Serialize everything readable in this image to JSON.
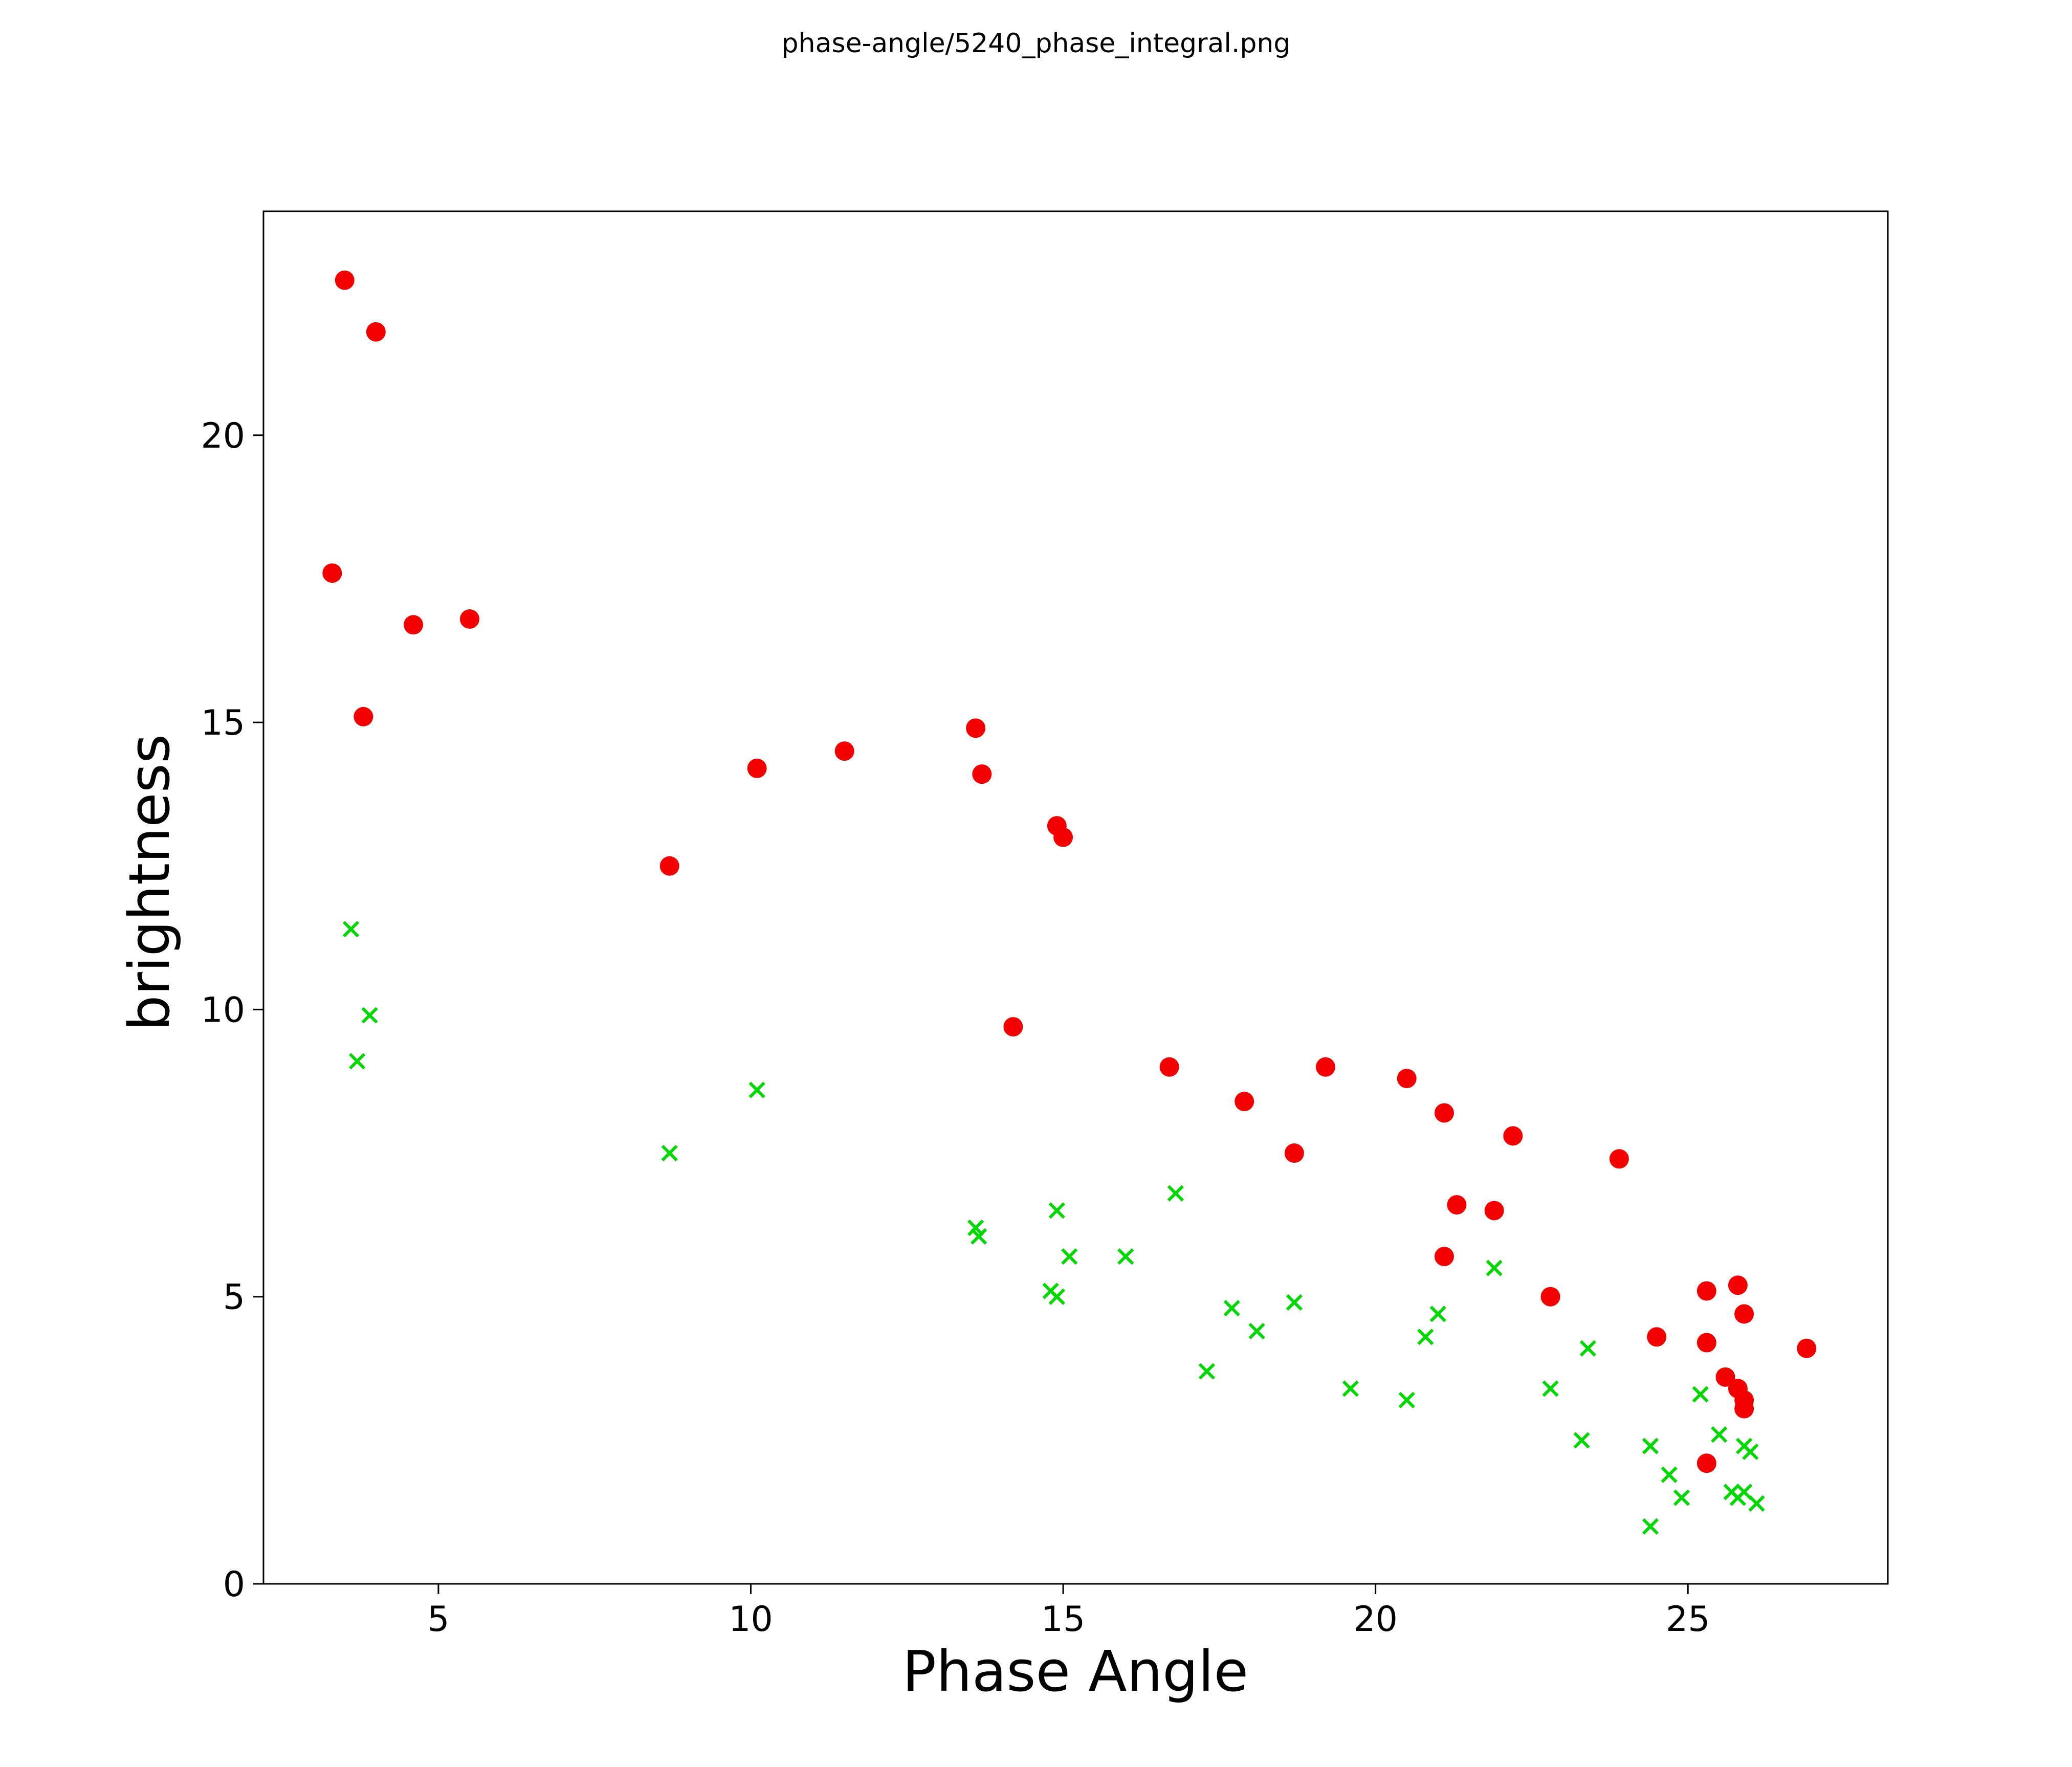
{
  "figure": {
    "background": "#ffffff"
  },
  "chart_data": {
    "type": "scatter",
    "title": "phase-angle/5240_phase_integral.png",
    "xlabel": "Phase Angle",
    "ylabel": "brightness",
    "xlim": [
      2.2,
      28.2
    ],
    "ylim": [
      0,
      23.9
    ],
    "xticks": [
      5,
      10,
      15,
      20,
      25
    ],
    "yticks": [
      0,
      5,
      10,
      15,
      20
    ],
    "grid": false,
    "legend": "none",
    "marker_colors": {
      "circles": "#f40000",
      "crosses": "#00d800"
    },
    "series": [
      {
        "name": "red-circles",
        "marker": "circle",
        "color": "#f40000",
        "points": [
          [
            3.5,
            22.7
          ],
          [
            4.0,
            21.8
          ],
          [
            3.3,
            17.6
          ],
          [
            3.8,
            15.1
          ],
          [
            4.6,
            16.7
          ],
          [
            5.5,
            16.8
          ],
          [
            8.7,
            12.5
          ],
          [
            10.1,
            14.2
          ],
          [
            11.5,
            14.5
          ],
          [
            13.6,
            14.9
          ],
          [
            13.7,
            14.1
          ],
          [
            14.9,
            13.2
          ],
          [
            15.0,
            13.0
          ],
          [
            14.2,
            9.7
          ],
          [
            16.7,
            9.0
          ],
          [
            17.9,
            8.4
          ],
          [
            18.7,
            7.5
          ],
          [
            19.2,
            9.0
          ],
          [
            20.5,
            8.8
          ],
          [
            21.1,
            8.2
          ],
          [
            21.1,
            5.7
          ],
          [
            21.3,
            6.6
          ],
          [
            21.9,
            6.5
          ],
          [
            22.2,
            7.8
          ],
          [
            22.8,
            5.0
          ],
          [
            23.9,
            7.4
          ],
          [
            24.5,
            4.3
          ],
          [
            25.3,
            5.1
          ],
          [
            25.8,
            5.2
          ],
          [
            25.9,
            4.7
          ],
          [
            25.3,
            4.2
          ],
          [
            25.6,
            3.6
          ],
          [
            25.8,
            3.4
          ],
          [
            25.9,
            3.2
          ],
          [
            25.9,
            3.05
          ],
          [
            25.3,
            2.1
          ],
          [
            26.9,
            4.1
          ]
        ]
      },
      {
        "name": "green-crosses",
        "marker": "x",
        "color": "#00d800",
        "points": [
          [
            3.6,
            11.4
          ],
          [
            3.9,
            9.9
          ],
          [
            3.7,
            9.1
          ],
          [
            8.7,
            7.5
          ],
          [
            10.1,
            8.6
          ],
          [
            13.6,
            6.2
          ],
          [
            13.65,
            6.05
          ],
          [
            14.9,
            6.5
          ],
          [
            15.1,
            5.7
          ],
          [
            16.0,
            5.7
          ],
          [
            14.8,
            5.1
          ],
          [
            14.9,
            5.0
          ],
          [
            16.8,
            6.8
          ],
          [
            17.3,
            3.7
          ],
          [
            17.7,
            4.8
          ],
          [
            18.1,
            4.4
          ],
          [
            18.7,
            4.9
          ],
          [
            19.6,
            3.4
          ],
          [
            20.5,
            3.2
          ],
          [
            20.8,
            4.3
          ],
          [
            21.0,
            4.7
          ],
          [
            21.9,
            5.5
          ],
          [
            22.8,
            3.4
          ],
          [
            23.3,
            2.5
          ],
          [
            23.4,
            4.1
          ],
          [
            24.4,
            2.4
          ],
          [
            24.4,
            1.0
          ],
          [
            24.7,
            1.9
          ],
          [
            24.9,
            1.5
          ],
          [
            25.2,
            3.3
          ],
          [
            25.5,
            2.6
          ],
          [
            25.7,
            1.6
          ],
          [
            25.8,
            1.5
          ],
          [
            25.9,
            2.4
          ],
          [
            25.9,
            1.6
          ],
          [
            26.0,
            2.3
          ],
          [
            26.1,
            1.4
          ]
        ]
      }
    ]
  }
}
